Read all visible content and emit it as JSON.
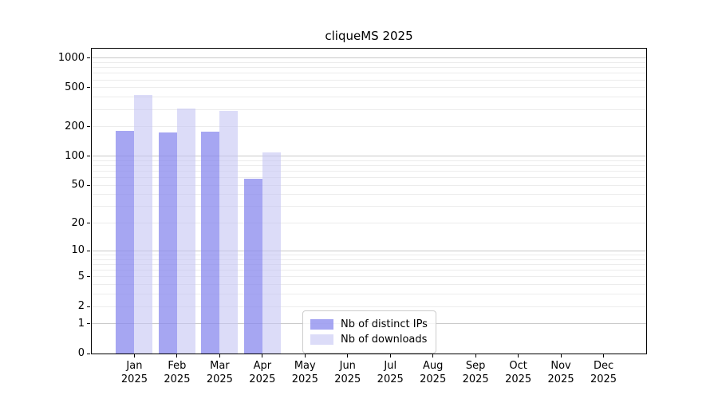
{
  "title": "cliqueMS 2025",
  "chart_data": {
    "type": "bar",
    "title": "cliqueMS 2025",
    "yscale": "log(1+x)",
    "ylim": [
      0,
      1280
    ],
    "yticks": [
      0,
      1,
      2,
      5,
      10,
      20,
      50,
      100,
      200,
      500,
      1000
    ],
    "grid": "horizontal; darker major lines at 1,10,100,1000; light minor log lines",
    "legend_position": "inside lower-center",
    "months": [
      "Jan",
      "Feb",
      "Mar",
      "Apr",
      "May",
      "Jun",
      "Jul",
      "Aug",
      "Sep",
      "Oct",
      "Nov",
      "Dec"
    ],
    "year": "2025",
    "categories": [
      "Jan 2025",
      "Feb 2025",
      "Mar 2025",
      "Apr 2025",
      "May 2025",
      "Jun 2025",
      "Jul 2025",
      "Aug 2025",
      "Sep 2025",
      "Oct 2025",
      "Nov 2025",
      "Dec 2025"
    ],
    "series": [
      {
        "name": "Nb of distinct IPs",
        "color": "rgba(136,136,238,0.75)",
        "values": [
          182,
          175,
          178,
          59,
          0,
          0,
          0,
          0,
          0,
          0,
          0,
          0
        ]
      },
      {
        "name": "Nb of downloads",
        "color": "rgba(196,196,243,0.6)",
        "values": [
          420,
          305,
          290,
          110,
          0,
          0,
          0,
          0,
          0,
          0,
          0,
          0
        ]
      }
    ]
  },
  "colors": {
    "background": "#ffffff",
    "axis": "#000000",
    "grid_major": "#c9c9c9",
    "grid_minor": "#ececec",
    "legend_border": "#cccccc",
    "ips_bar": "rgba(136,136,238,0.75)",
    "downloads_bar": "rgba(196,196,243,0.6)"
  }
}
